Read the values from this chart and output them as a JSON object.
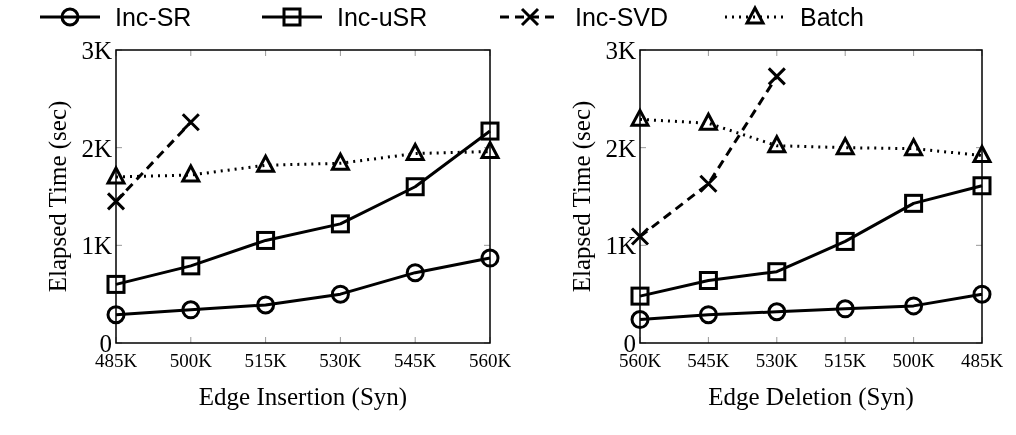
{
  "chart_data": [
    {
      "type": "line",
      "xlabel": "Edge Insertion (Syn)",
      "ylabel": "Elapsed Time (sec)",
      "categories": [
        "485K",
        "500K",
        "515K",
        "530K",
        "545K",
        "560K"
      ],
      "ylim": [
        0,
        3000
      ],
      "yticks": [
        {
          "value": 0,
          "label": "0"
        },
        {
          "value": 1000,
          "label": "1K"
        },
        {
          "value": 2000,
          "label": "2K"
        },
        {
          "value": 3000,
          "label": "3K"
        }
      ],
      "legend": "top",
      "grid": false,
      "series": [
        {
          "name": "Inc-SR",
          "color": "#000000",
          "marker": "circle",
          "line_style": "solid",
          "values": [
            290,
            340,
            390,
            500,
            720,
            870
          ]
        },
        {
          "name": "Inc-uSR",
          "color": "#000000",
          "marker": "square",
          "line_style": "solid",
          "values": [
            600,
            790,
            1050,
            1220,
            1600,
            2170
          ]
        },
        {
          "name": "Inc-SVD",
          "color": "#000000",
          "marker": "cross",
          "line_style": "dashed",
          "values": [
            1450,
            2260,
            null,
            null,
            null,
            null
          ]
        },
        {
          "name": "Batch",
          "color": "#000000",
          "marker": "triangle",
          "line_style": "dotted",
          "values": [
            1700,
            1720,
            1820,
            1840,
            1940,
            1960
          ]
        }
      ]
    },
    {
      "type": "line",
      "xlabel": "Edge Deletion (Syn)",
      "ylabel": "Elapsed Time (sec)",
      "categories": [
        "560K",
        "545K",
        "530K",
        "515K",
        "500K",
        "485K"
      ],
      "ylim": [
        0,
        3000
      ],
      "yticks": [
        {
          "value": 0,
          "label": "0"
        },
        {
          "value": 1000,
          "label": "1K"
        },
        {
          "value": 2000,
          "label": "2K"
        },
        {
          "value": 3000,
          "label": "3K"
        }
      ],
      "grid": false,
      "series": [
        {
          "color": "#000000",
          "marker": "circle",
          "line_style": "solid",
          "values": [
            240,
            290,
            320,
            350,
            380,
            500
          ]
        },
        {
          "color": "#000000",
          "marker": "square",
          "line_style": "solid",
          "values": [
            480,
            640,
            730,
            1040,
            1430,
            1610
          ]
        },
        {
          "color": "#000000",
          "marker": "cross",
          "line_style": "dashed",
          "values": [
            1090,
            1630,
            2730,
            null,
            null,
            null
          ]
        },
        {
          "color": "#000000",
          "marker": "triangle",
          "line_style": "dotted",
          "values": [
            2290,
            2250,
            2020,
            2000,
            1990,
            1920
          ]
        }
      ]
    }
  ]
}
